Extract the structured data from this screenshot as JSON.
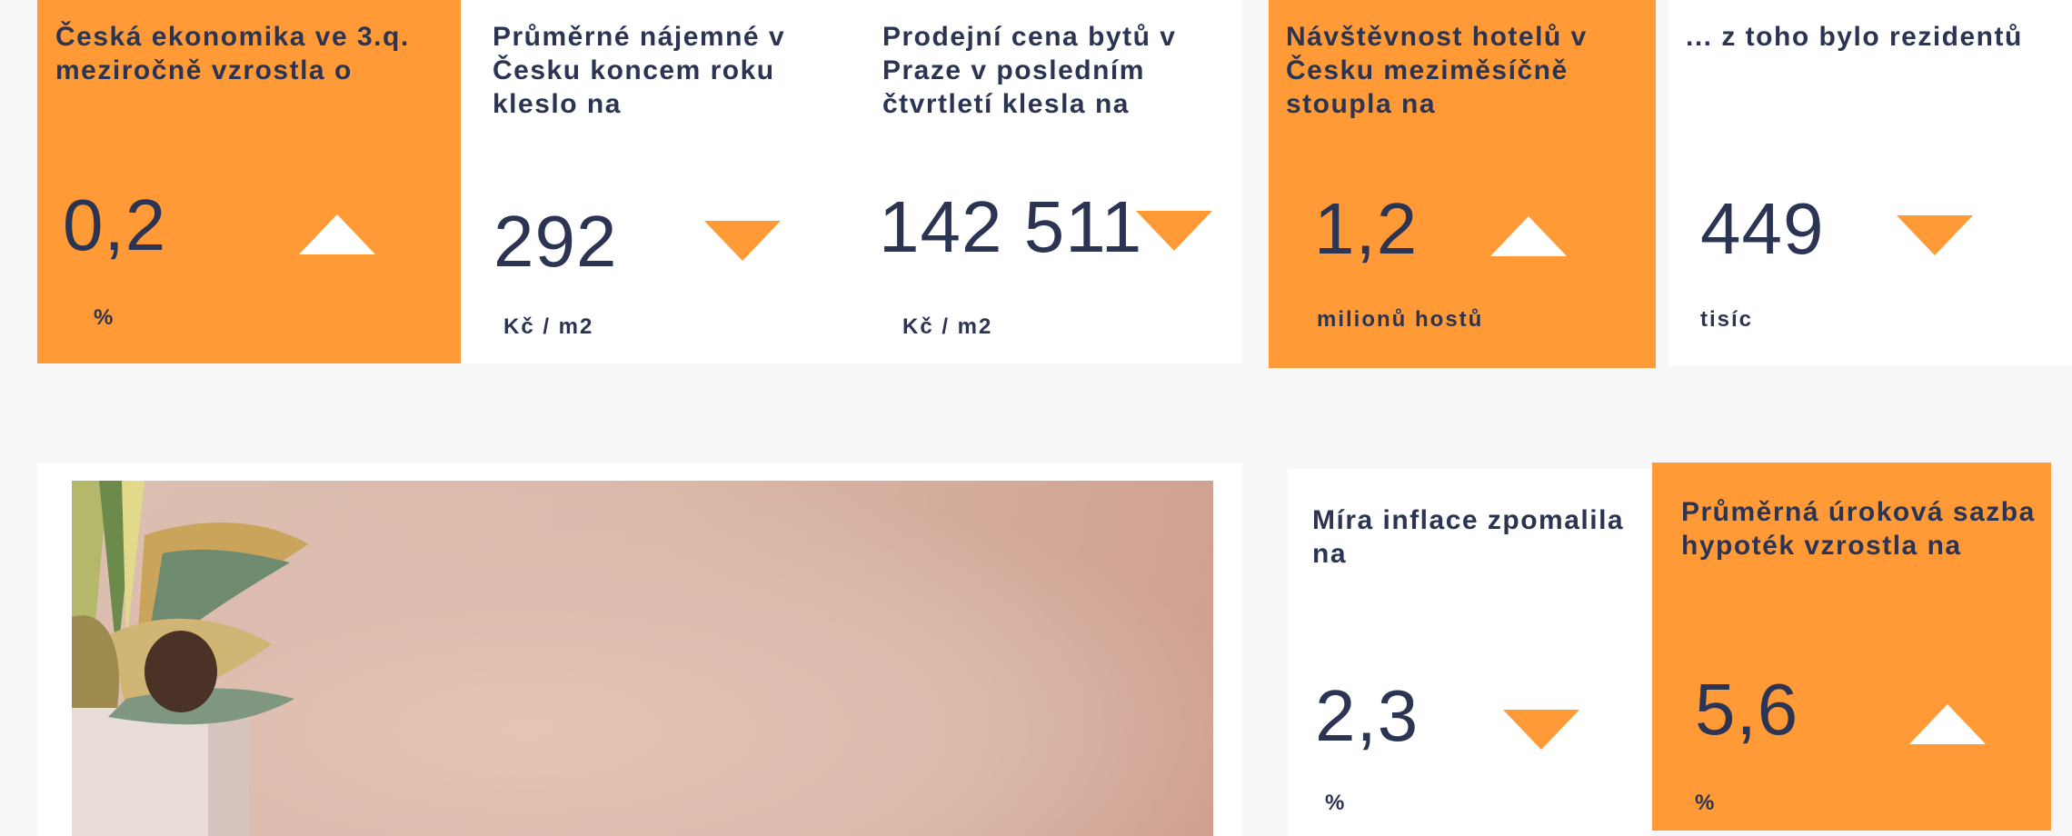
{
  "colors": {
    "accent": "#ff9a36",
    "text": "#2b3452",
    "background": "#f7f7f7"
  },
  "cards": [
    {
      "title": "Česká ekonomika ve 3.q. meziročně vzrostla o",
      "value": "0,2",
      "unit": "%",
      "trend": "up",
      "style": "orange"
    },
    {
      "title": "Průměrné nájemné v Česku koncem roku kleslo na",
      "value": "292",
      "unit": "Kč / m2",
      "trend": "down",
      "style": "white"
    },
    {
      "title": "Prodejní cena bytů v Praze  v posledním čtvrtletí klesla na",
      "value": "142 511",
      "unit": "Kč / m2",
      "trend": "down",
      "style": "white"
    },
    {
      "title": "Návštěvnost hotelů v Česku meziměsíčně stoupla na",
      "value": "1,2",
      "unit": "milionů hostů",
      "trend": "up",
      "style": "orange"
    },
    {
      "title": "... z toho bylo rezidentů",
      "value": "449",
      "unit": "tisíc",
      "trend": "down",
      "style": "white"
    },
    {
      "title": "Míra inflace zpomalila na",
      "value": "2,3",
      "unit": "%",
      "trend": "down",
      "style": "white"
    },
    {
      "title": "Průměrná úroková sazba hypoték vzrostla na",
      "value": "5,6",
      "unit": "%",
      "trend": "up",
      "style": "orange"
    }
  ],
  "photo": {
    "icon": "potted-plant-photo"
  }
}
